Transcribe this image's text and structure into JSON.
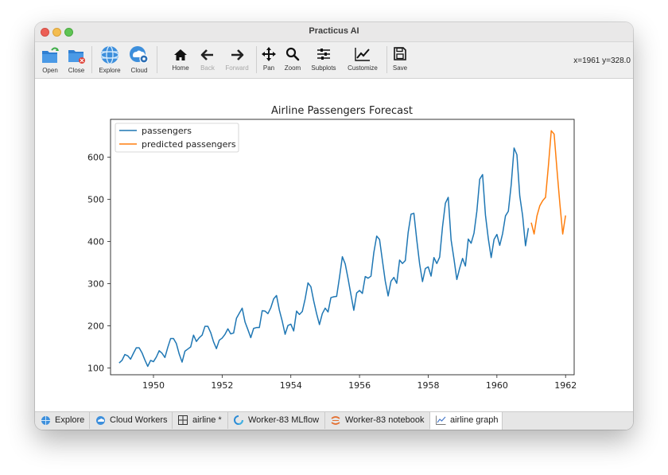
{
  "window": {
    "title": "Practicus AI"
  },
  "toolbar": {
    "open": "Open",
    "close": "Close",
    "explore": "Explore",
    "cloud": "Cloud",
    "home": "Home",
    "back": "Back",
    "forward": "Forward",
    "pan": "Pan",
    "zoom": "Zoom",
    "subplots": "Subplots",
    "customize": "Customize",
    "save": "Save",
    "coords": "x=1961 y=328.0"
  },
  "tabs": [
    {
      "label": "Explore",
      "icon": "explore-icon"
    },
    {
      "label": "Cloud Workers",
      "icon": "cloud-icon"
    },
    {
      "label": "airline *",
      "icon": "table-icon"
    },
    {
      "label": "Worker-83 MLflow",
      "icon": "mlflow-icon"
    },
    {
      "label": "Worker-83 notebook",
      "icon": "jupyter-icon"
    },
    {
      "label": "airline graph",
      "icon": "chart-icon",
      "active": true
    }
  ],
  "colors": {
    "passengers": "#1f77b4",
    "predicted": "#ff7f0e"
  },
  "chart_data": {
    "type": "line",
    "title": "Airline Passengers Forecast",
    "xlabel": "",
    "ylabel": "",
    "xlim": [
      1948.75,
      1962.25
    ],
    "ylim": [
      84,
      690
    ],
    "xticks": [
      1950,
      1952,
      1954,
      1956,
      1958,
      1960,
      1962
    ],
    "yticks": [
      100,
      200,
      300,
      400,
      500,
      600
    ],
    "legend": "top-left",
    "grid": false,
    "series": [
      {
        "name": "passengers",
        "start": 1949,
        "step": 0.08333333,
        "values": [
          112,
          118,
          132,
          129,
          121,
          135,
          148,
          148,
          136,
          119,
          104,
          118,
          115,
          126,
          141,
          135,
          125,
          149,
          170,
          170,
          158,
          133,
          114,
          140,
          145,
          150,
          178,
          163,
          172,
          178,
          199,
          199,
          184,
          162,
          146,
          166,
          171,
          180,
          193,
          181,
          183,
          218,
          230,
          242,
          209,
          191,
          172,
          194,
          196,
          196,
          236,
          235,
          229,
          243,
          264,
          272,
          237,
          211,
          180,
          201,
          204,
          188,
          235,
          227,
          234,
          264,
          302,
          293,
          259,
          229,
          203,
          229,
          242,
          233,
          267,
          269,
          270,
          315,
          364,
          347,
          312,
          274,
          237,
          278,
          284,
          277,
          317,
          313,
          318,
          374,
          413,
          405,
          355,
          306,
          271,
          306,
          315,
          301,
          356,
          348,
          355,
          422,
          465,
          467,
          404,
          347,
          305,
          336,
          340,
          318,
          362,
          348,
          363,
          435,
          491,
          505,
          404,
          359,
          310,
          337,
          360,
          342,
          406,
          396,
          420,
          472,
          548,
          559,
          463,
          407,
          362,
          405,
          417,
          391,
          419,
          461,
          472,
          535,
          622,
          606,
          508,
          461,
          390,
          432
        ]
      },
      {
        "name": "predicted passengers",
        "start": 1961,
        "step": 0.08333333,
        "values": [
          445,
          418,
          461,
          485,
          497,
          505,
          580,
          663,
          655,
          570,
          490,
          418,
          462
        ]
      }
    ]
  }
}
